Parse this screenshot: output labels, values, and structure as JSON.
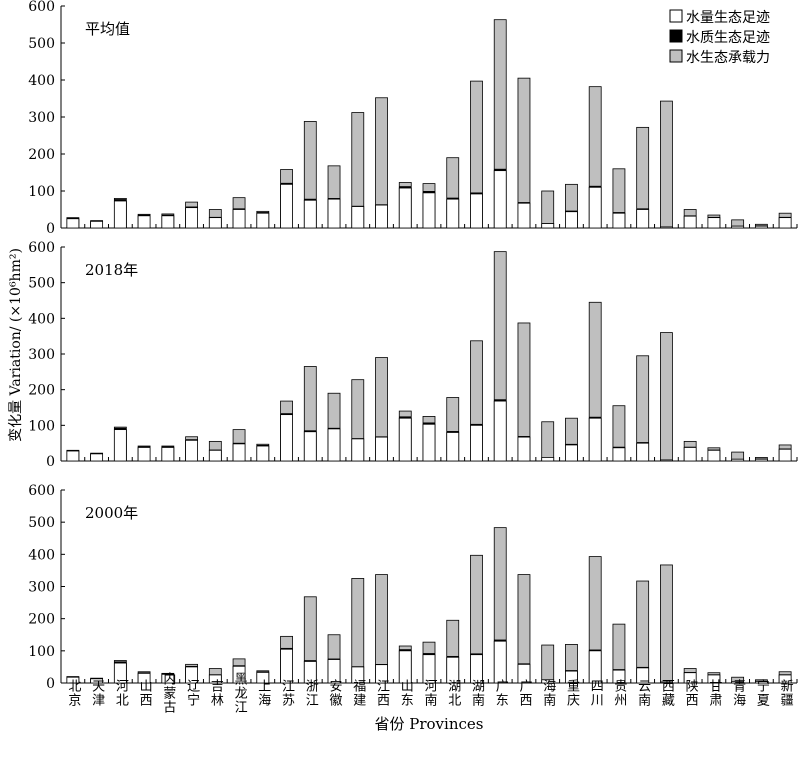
{
  "chart_data": {
    "type": "bar",
    "stacked": true,
    "ylabel": "变化量 Variation/ (×10⁶hm²)",
    "xlabel": "省份 Provinces",
    "legend": {
      "placement": "top-right",
      "entries": [
        "水量生态足迹",
        "水质生态足迹",
        "水生态承载力"
      ]
    },
    "colors": {
      "water_quantity_footprint": "#ffffff",
      "water_quality_footprint": "#000000",
      "carrying_capacity": "#bfbfbf",
      "outline": "#000000"
    },
    "categories": [
      "北京",
      "天津",
      "河北",
      "山西",
      "内蒙古",
      "辽宁",
      "吉林",
      "黑龙江",
      "上海",
      "江苏",
      "浙江",
      "安徽",
      "福建",
      "江西",
      "山东",
      "河南",
      "湖北",
      "湖南",
      "广东",
      "广西",
      "海南",
      "重庆",
      "四川",
      "贵州",
      "云南",
      "西藏",
      "陕西",
      "甘肃",
      "青海",
      "宁夏",
      "新疆"
    ],
    "ylim": [
      0,
      600
    ],
    "yticks": [
      0,
      100,
      200,
      300,
      400,
      500,
      600
    ],
    "grid": false,
    "panels": [
      {
        "title": "平均值",
        "series": [
          {
            "name": "水量生态足迹",
            "values": [
              25,
              18,
              73,
              33,
              33,
              55,
              28,
              50,
              40,
              118,
              75,
              78,
              58,
              62,
              108,
              95,
              78,
              92,
              155,
              67,
              12,
              44,
              110,
              40,
              50,
              3,
              32,
              28,
              5,
              5,
              28
            ]
          },
          {
            "name": "水质生态足迹",
            "values": [
              2,
              2,
              5,
              3,
              3,
              3,
              2,
              3,
              3,
              4,
              4,
              3,
              2,
              2,
              5,
              5,
              4,
              4,
              5,
              3,
              1,
              3,
              4,
              3,
              3,
              1,
              2,
              2,
              1,
              2,
              2
            ]
          },
          {
            "name": "水生态承载力",
            "totals": [
              28,
              20,
              80,
              37,
              38,
              70,
              50,
              82,
              45,
              158,
              288,
              168,
              312,
              352,
              123,
              120,
              190,
              397,
              563,
              405,
              100,
              118,
              382,
              160,
              272,
              343,
              50,
              35,
              22,
              10,
              40
            ]
          }
        ]
      },
      {
        "title": "2018年",
        "series": [
          {
            "name": "水量生态足迹",
            "values": [
              28,
              20,
              88,
              38,
              38,
              58,
              30,
              48,
              42,
              130,
              82,
              90,
              62,
              67,
              120,
              103,
              80,
              100,
              168,
              67,
              10,
              45,
              120,
              37,
              50,
              3,
              38,
              30,
              5,
              5,
              33
            ]
          },
          {
            "name": "水质生态足迹",
            "values": [
              2,
              2,
              5,
              3,
              3,
              3,
              2,
              3,
              3,
              4,
              4,
              3,
              2,
              2,
              5,
              5,
              4,
              4,
              5,
              3,
              1,
              3,
              4,
              3,
              3,
              1,
              2,
              2,
              1,
              2,
              2
            ]
          },
          {
            "name": "水生态承载力",
            "totals": [
              30,
              22,
              95,
              42,
              42,
              68,
              55,
              88,
              47,
              168,
              265,
              190,
              228,
              290,
              140,
              125,
              178,
              337,
              587,
              387,
              110,
              120,
              445,
              155,
              295,
              360,
              55,
              37,
              25,
              10,
              45
            ]
          }
        ]
      },
      {
        "title": "2000年",
        "series": [
          {
            "name": "水量生态足迹",
            "values": [
              18,
              13,
              62,
              30,
              27,
              50,
              25,
              52,
              33,
              105,
              67,
              73,
              50,
              57,
              100,
              88,
              80,
              88,
              130,
              58,
              10,
              37,
              100,
              40,
              47,
              3,
              32,
              25,
              5,
              5,
              25
            ]
          },
          {
            "name": "水质生态足迹",
            "values": [
              2,
              2,
              5,
              3,
              3,
              3,
              2,
              3,
              3,
              4,
              4,
              3,
              2,
              2,
              5,
              5,
              4,
              4,
              5,
              3,
              1,
              3,
              4,
              3,
              3,
              1,
              2,
              2,
              1,
              2,
              2
            ]
          },
          {
            "name": "水生态承载力",
            "totals": [
              20,
              15,
              70,
              35,
              30,
              58,
              45,
              75,
              38,
              145,
              268,
              150,
              325,
              337,
              115,
              127,
              195,
              397,
              483,
              337,
              118,
              120,
              393,
              183,
              317,
              367,
              45,
              32,
              18,
              10,
              35
            ]
          }
        ]
      }
    ]
  }
}
